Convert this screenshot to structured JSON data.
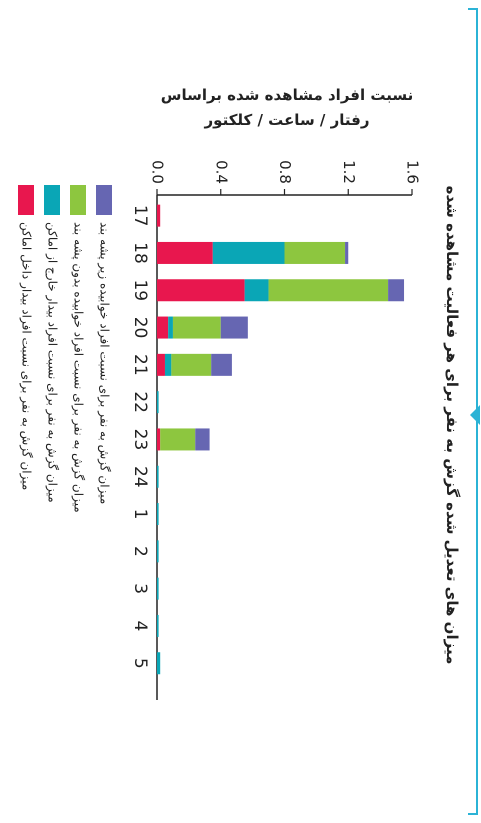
{
  "chart_data": {
    "type": "bar",
    "stacked": true,
    "orientation": "rotated-90-clockwise",
    "title": "میزان های تعدیل شده گزش به نفر برای هر فعالیت مشاهده شده",
    "ylabel": "نسبت افراد مشاهده شده براساس رفتار / ساعت / کلکتور",
    "ylabel_line1": "نسبت افراد مشاهده شده براساس",
    "ylabel_line2": "رفتار / ساعت / کلکتور",
    "categories": [
      "17",
      "18",
      "19",
      "20",
      "21",
      "22",
      "23",
      "24",
      "1",
      "2",
      "3",
      "4",
      "5"
    ],
    "ylim": [
      0,
      1.6
    ],
    "yticks": [
      "0.0",
      "0.4",
      "0.8",
      "1.2",
      "1.6"
    ],
    "series": [
      {
        "name": "میزان گزش به نفر برای نسبت افراد بیدار داخل اماکن",
        "color": "#e8174e",
        "values": [
          0.02,
          0.35,
          0.55,
          0.07,
          0.05,
          0.0,
          0.02,
          0.0,
          0.0,
          0.0,
          0.0,
          0.0,
          0.0
        ]
      },
      {
        "name": "میزان گزش به نفر برای نسبت افراد بیدار خارج از اماکن",
        "color": "#0aa6b6",
        "values": [
          0.0,
          0.45,
          0.15,
          0.03,
          0.04,
          0.01,
          0.0,
          0.01,
          0.01,
          0.01,
          0.01,
          0.01,
          0.02
        ]
      },
      {
        "name": "میزان گزش به نفر برای نسبت افراد خوابیده بدون پشه بند",
        "color": "#8dc63f",
        "values": [
          0.0,
          0.38,
          0.75,
          0.3,
          0.25,
          0.0,
          0.22,
          0.0,
          0.0,
          0.0,
          0.0,
          0.0,
          0.0
        ]
      },
      {
        "name": "میزان گزش به نفر برای نسبت افراد خوابیده زیر پشه بند",
        "color": "#6666b2",
        "values": [
          0.0,
          0.02,
          0.1,
          0.17,
          0.13,
          0.0,
          0.09,
          0.0,
          0.0,
          0.0,
          0.0,
          0.0,
          0.0
        ]
      }
    ]
  }
}
